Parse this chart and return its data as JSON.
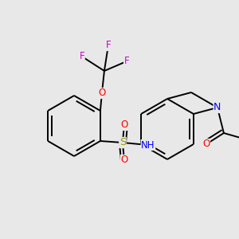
{
  "background_color": "#e8e8e8",
  "bond_color": "#000000",
  "atom_colors": {
    "F": "#cc00cc",
    "O": "#ff0000",
    "S": "#999900",
    "N": "#0000ff",
    "C": "#000000"
  },
  "figsize": [
    3.0,
    3.0
  ],
  "dpi": 100
}
